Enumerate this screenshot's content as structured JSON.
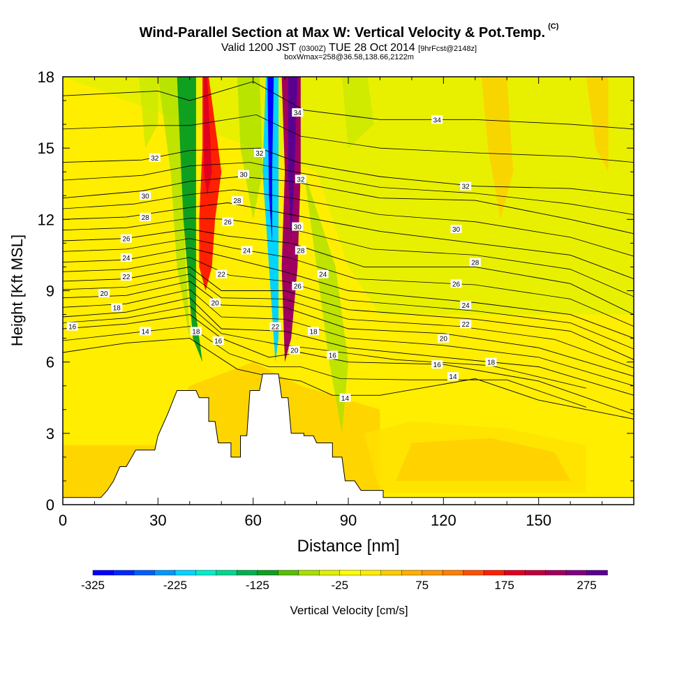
{
  "titles": {
    "title": "Wind-Parallel Section at Max W: Vertical Velocity & Pot.Temp.",
    "copyright": "(C)",
    "valid_prefix": "Valid 1200 JST",
    "valid_utc": "(0300Z)",
    "valid_date": "TUE 28 Oct 2014",
    "forecast": "[9hrFcst@2148z]",
    "box_info": "boxWmax=258@36.58,138.66,2122m"
  },
  "chart_data": {
    "type": "heatmap",
    "xlabel": "Distance [nm]",
    "ylabel": "Height [Kft MSL]",
    "xlim": [
      0,
      180
    ],
    "ylim": [
      0,
      18
    ],
    "x_ticks": [
      0,
      30,
      60,
      90,
      120,
      150
    ],
    "y_ticks": [
      0,
      3,
      6,
      9,
      12,
      15,
      18
    ],
    "colorbar": {
      "label": "Vertical Velocity [cm/s]",
      "min": -325,
      "max": 300,
      "step": 25,
      "tick_labels": [
        -325,
        -225,
        -125,
        -25,
        75,
        175,
        275
      ],
      "colors": [
        "#0000ff",
        "#0028ff",
        "#0060ff",
        "#0098ff",
        "#00d4ff",
        "#00eecc",
        "#00d890",
        "#00b050",
        "#10a020",
        "#58c000",
        "#a8e000",
        "#e0f000",
        "#ffff00",
        "#ffee00",
        "#ffcc00",
        "#ffb000",
        "#ff9800",
        "#ff8000",
        "#ff5000",
        "#ff2000",
        "#e00020",
        "#c00040",
        "#a00060",
        "#800080",
        "#5a0090"
      ]
    },
    "terrain": [
      [
        0,
        0.3
      ],
      [
        12,
        0.3
      ],
      [
        14,
        0.6
      ],
      [
        16,
        1.0
      ],
      [
        18,
        1.6
      ],
      [
        20,
        1.6
      ],
      [
        23,
        2.3
      ],
      [
        29,
        2.3
      ],
      [
        30,
        2.9
      ],
      [
        33,
        3.8
      ],
      [
        36,
        4.8
      ],
      [
        42,
        4.8
      ],
      [
        43,
        4.5
      ],
      [
        46,
        4.5
      ],
      [
        46,
        3.5
      ],
      [
        47,
        3.5
      ],
      [
        47,
        3.5
      ],
      [
        48,
        3.5
      ],
      [
        49,
        2.6
      ],
      [
        53,
        2.6
      ],
      [
        53,
        2.0
      ],
      [
        56,
        2.0
      ],
      [
        56,
        2.9
      ],
      [
        58,
        2.9
      ],
      [
        59,
        4.8
      ],
      [
        62,
        4.8
      ],
      [
        63,
        5.5
      ],
      [
        68,
        5.5
      ],
      [
        69,
        4.5
      ],
      [
        71,
        4.5
      ],
      [
        72,
        3.0
      ],
      [
        76,
        3.0
      ],
      [
        76,
        2.9
      ],
      [
        79,
        2.9
      ],
      [
        80,
        2.6
      ],
      [
        85,
        2.6
      ],
      [
        85,
        2.0
      ],
      [
        88,
        2.0
      ],
      [
        89,
        1.0
      ],
      [
        92,
        1.0
      ],
      [
        94,
        0.6
      ],
      [
        101,
        0.6
      ],
      [
        101,
        0.3
      ],
      [
        180,
        0.3
      ]
    ],
    "theta_contours": [
      {
        "label": "14",
        "points": [
          [
            0,
            6.4
          ],
          [
            20,
            6.8
          ],
          [
            40,
            7.0
          ],
          [
            55,
            5.7
          ],
          [
            65,
            5.4
          ],
          [
            75,
            5.2
          ],
          [
            85,
            4.6
          ],
          [
            100,
            4.6
          ],
          [
            130,
            5.3
          ],
          [
            150,
            4.4
          ],
          [
            180,
            3.6
          ]
        ]
      },
      {
        "label": "16",
        "points": [
          [
            0,
            7.4
          ],
          [
            20,
            7.6
          ],
          [
            40,
            8.0
          ],
          [
            50,
            7.0
          ],
          [
            65,
            6.2
          ],
          [
            75,
            6.4
          ],
          [
            90,
            6.0
          ],
          [
            120,
            5.9
          ],
          [
            150,
            5.2
          ],
          [
            180,
            3.8
          ]
        ]
      },
      {
        "label": "18",
        "points": [
          [
            0,
            7.9
          ],
          [
            20,
            8.1
          ],
          [
            40,
            8.7
          ],
          [
            50,
            7.4
          ],
          [
            70,
            7.3
          ],
          [
            90,
            6.6
          ],
          [
            120,
            6.2
          ],
          [
            150,
            5.8
          ],
          [
            180,
            4.6
          ]
        ]
      },
      {
        "label": "20",
        "points": [
          [
            0,
            8.7
          ],
          [
            20,
            8.8
          ],
          [
            40,
            9.4
          ],
          [
            50,
            8.4
          ],
          [
            70,
            8.3
          ],
          [
            90,
            7.4
          ],
          [
            120,
            7.2
          ],
          [
            150,
            6.6
          ],
          [
            180,
            5.4
          ]
        ]
      },
      {
        "label": "22",
        "points": [
          [
            0,
            9.4
          ],
          [
            20,
            9.5
          ],
          [
            40,
            10.0
          ],
          [
            50,
            9.0
          ],
          [
            70,
            9.0
          ],
          [
            90,
            8.2
          ],
          [
            130,
            7.8
          ],
          [
            160,
            7.3
          ],
          [
            180,
            6.1
          ]
        ]
      },
      {
        "label": "24",
        "points": [
          [
            0,
            10.2
          ],
          [
            20,
            10.3
          ],
          [
            40,
            10.8
          ],
          [
            55,
            10.3
          ],
          [
            70,
            9.8
          ],
          [
            90,
            9.0
          ],
          [
            130,
            8.5
          ],
          [
            160,
            8.0
          ],
          [
            180,
            7.0
          ]
        ]
      },
      {
        "label": "26",
        "points": [
          [
            0,
            11.1
          ],
          [
            20,
            11.2
          ],
          [
            40,
            11.6
          ],
          [
            52,
            11.3
          ],
          [
            72,
            11.0
          ],
          [
            95,
            10.0
          ],
          [
            130,
            10.0
          ],
          [
            160,
            9.3
          ],
          [
            180,
            8.0
          ]
        ]
      },
      {
        "label": "28",
        "points": [
          [
            0,
            12.0
          ],
          [
            20,
            12.1
          ],
          [
            40,
            12.5
          ],
          [
            52,
            12.7
          ],
          [
            72,
            12.2
          ],
          [
            100,
            11.5
          ],
          [
            130,
            11.0
          ],
          [
            160,
            10.5
          ],
          [
            180,
            9.5
          ]
        ]
      },
      {
        "label": "30",
        "points": [
          [
            0,
            12.9
          ],
          [
            25,
            13.2
          ],
          [
            40,
            13.6
          ],
          [
            56,
            13.8
          ],
          [
            72,
            13.6
          ],
          [
            100,
            12.9
          ],
          [
            130,
            12.8
          ],
          [
            160,
            12.0
          ],
          [
            180,
            11.4
          ]
        ]
      },
      {
        "label": "32",
        "points": [
          [
            0,
            14.4
          ],
          [
            25,
            14.5
          ],
          [
            40,
            14.9
          ],
          [
            62,
            15.0
          ],
          [
            74,
            14.4
          ],
          [
            100,
            13.8
          ],
          [
            130,
            13.4
          ],
          [
            160,
            13.3
          ],
          [
            180,
            13.0
          ]
        ]
      },
      {
        "label": "34",
        "points": [
          [
            0,
            17.2
          ],
          [
            30,
            17.4
          ],
          [
            40,
            17.0
          ],
          [
            60,
            17.8
          ],
          [
            76,
            16.6
          ],
          [
            100,
            16.2
          ],
          [
            130,
            16.2
          ],
          [
            160,
            16.0
          ],
          [
            180,
            15.8
          ]
        ]
      }
    ],
    "contour_labels": [
      {
        "text": "16",
        "x": 3,
        "y": 7.5
      },
      {
        "text": "14",
        "x": 26,
        "y": 7.3
      },
      {
        "text": "18",
        "x": 17,
        "y": 8.3
      },
      {
        "text": "20",
        "x": 13,
        "y": 8.9
      },
      {
        "text": "22",
        "x": 20,
        "y": 9.6
      },
      {
        "text": "24",
        "x": 20,
        "y": 10.4
      },
      {
        "text": "26",
        "x": 20,
        "y": 11.2
      },
      {
        "text": "28",
        "x": 26,
        "y": 12.1
      },
      {
        "text": "30",
        "x": 26,
        "y": 13.0
      },
      {
        "text": "32",
        "x": 29,
        "y": 14.6
      },
      {
        "text": "18",
        "x": 42,
        "y": 7.3
      },
      {
        "text": "16",
        "x": 49,
        "y": 6.9
      },
      {
        "text": "20",
        "x": 48,
        "y": 8.5
      },
      {
        "text": "22",
        "x": 50,
        "y": 9.7
      },
      {
        "text": "24",
        "x": 58,
        "y": 10.7
      },
      {
        "text": "26",
        "x": 52,
        "y": 11.9
      },
      {
        "text": "28",
        "x": 55,
        "y": 12.8
      },
      {
        "text": "30",
        "x": 57,
        "y": 13.9
      },
      {
        "text": "32",
        "x": 62,
        "y": 14.8
      },
      {
        "text": "22",
        "x": 67,
        "y": 7.5
      },
      {
        "text": "20",
        "x": 73,
        "y": 6.5
      },
      {
        "text": "26",
        "x": 74,
        "y": 9.2
      },
      {
        "text": "28",
        "x": 75,
        "y": 10.7
      },
      {
        "text": "30",
        "x": 74,
        "y": 11.7
      },
      {
        "text": "32",
        "x": 75,
        "y": 13.7
      },
      {
        "text": "34",
        "x": 74,
        "y": 16.5
      },
      {
        "text": "18",
        "x": 79,
        "y": 7.3
      },
      {
        "text": "16",
        "x": 85,
        "y": 6.3
      },
      {
        "text": "24",
        "x": 82,
        "y": 9.7
      },
      {
        "text": "14",
        "x": 89,
        "y": 4.5
      },
      {
        "text": "34",
        "x": 118,
        "y": 16.2
      },
      {
        "text": "32",
        "x": 127,
        "y": 13.4
      },
      {
        "text": "30",
        "x": 124,
        "y": 11.6
      },
      {
        "text": "28",
        "x": 130,
        "y": 10.2
      },
      {
        "text": "26",
        "x": 124,
        "y": 9.3
      },
      {
        "text": "24",
        "x": 127,
        "y": 8.4
      },
      {
        "text": "22",
        "x": 127,
        "y": 7.6
      },
      {
        "text": "20",
        "x": 120,
        "y": 7.0
      },
      {
        "text": "16",
        "x": 118,
        "y": 5.9
      },
      {
        "text": "14",
        "x": 123,
        "y": 5.4
      },
      {
        "text": "18",
        "x": 135,
        "y": 6.0
      }
    ],
    "velocity_bands": [
      {
        "name": "western updraft",
        "color": "#ff2000",
        "points": [
          [
            44,
            18
          ],
          [
            46,
            18
          ],
          [
            50,
            14
          ],
          [
            48,
            12
          ],
          [
            47,
            10
          ],
          [
            45,
            9
          ],
          [
            43,
            10
          ],
          [
            43,
            12
          ],
          [
            44,
            15
          ]
        ]
      },
      {
        "name": "western updraft core",
        "color": "#e00020",
        "points": [
          [
            44.5,
            18
          ],
          [
            45.5,
            18
          ],
          [
            47,
            14
          ],
          [
            45.5,
            13
          ],
          [
            44.5,
            14
          ]
        ]
      },
      {
        "name": "western downdraft",
        "color": "#10a020",
        "points": [
          [
            36,
            18
          ],
          [
            42,
            18
          ],
          [
            42,
            15
          ],
          [
            42,
            11
          ],
          [
            42,
            8
          ],
          [
            44,
            6
          ],
          [
            41,
            7
          ],
          [
            38,
            12
          ],
          [
            37,
            15
          ]
        ]
      },
      {
        "name": "central downdraft",
        "color": "#00d4ff",
        "points": [
          [
            64,
            18
          ],
          [
            68,
            18
          ],
          [
            68,
            14
          ],
          [
            68,
            10
          ],
          [
            68,
            7
          ],
          [
            67,
            6
          ],
          [
            65,
            10
          ],
          [
            63,
            14
          ]
        ]
      },
      {
        "name": "central downdraft core",
        "color": "#0000ff",
        "points": [
          [
            64.5,
            18
          ],
          [
            66.5,
            18
          ],
          [
            66,
            14
          ],
          [
            66,
            11
          ],
          [
            65,
            13
          ]
        ]
      },
      {
        "name": "eastern updraft",
        "color": "#a00060",
        "points": [
          [
            69,
            18
          ],
          [
            75,
            18
          ],
          [
            75,
            14
          ],
          [
            74,
            10
          ],
          [
            72,
            7
          ],
          [
            70,
            6
          ],
          [
            69,
            10
          ],
          [
            70,
            14
          ]
        ]
      },
      {
        "name": "eastern updraft core",
        "color": "#5a0090",
        "points": [
          [
            71,
            18
          ],
          [
            74,
            18
          ],
          [
            73,
            14
          ],
          [
            72,
            11
          ],
          [
            71,
            14
          ]
        ]
      }
    ],
    "grid": false
  }
}
